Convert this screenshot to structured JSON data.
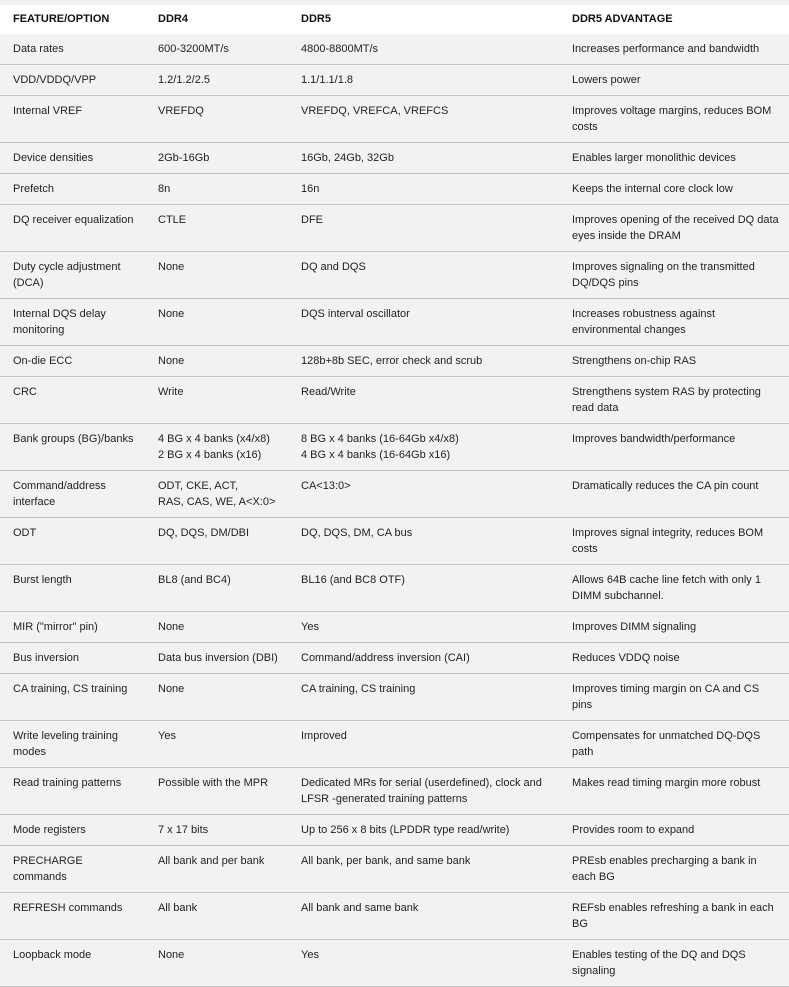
{
  "table": {
    "headers": [
      "FEATURE/OPTION",
      "DDR4",
      "DDR5",
      "DDR5 ADVANTAGE"
    ],
    "rows": [
      [
        "Data rates",
        "600-3200MT/s",
        "4800-8800MT/s",
        "Increases performance and bandwidth"
      ],
      [
        "VDD/VDDQ/VPP",
        " 1.2/1.2/2.5",
        " 1.1/1.1/1.8",
        "Lowers power"
      ],
      [
        "Internal VREF",
        "VREFDQ",
        "VREFDQ, VREFCA, VREFCS",
        "Improves voltage margins, reduces BOM costs"
      ],
      [
        "Device densities",
        " 2Gb-16Gb",
        " 16Gb, 24Gb, 32Gb",
        "Enables larger monolithic devices"
      ],
      [
        "Prefetch",
        " 8n",
        "16n",
        "Keeps the internal core clock low"
      ],
      [
        "DQ receiver equalization",
        "CTLE",
        "DFE",
        "Improves opening of the received DQ data eyes inside the DRAM"
      ],
      [
        "Duty cycle adjustment (DCA)",
        "None",
        "DQ and DQS",
        "Improves signaling on the transmitted DQ/DQS pins"
      ],
      [
        "Internal DQS delay monitoring",
        "None",
        "DQS interval oscillator",
        "Increases robustness against environmental changes"
      ],
      [
        "On-die ECC",
        "None",
        "128b+8b SEC, error check and scrub",
        "Strengthens on-chip RAS"
      ],
      [
        "CRC",
        "Write",
        "Read/Write",
        "Strengthens system RAS by protecting read data"
      ],
      [
        "Bank groups (BG)/banks",
        "4 BG x 4 banks (x4/x8)\n2 BG x 4 banks (x16)",
        "8 BG x 4 banks (16-64Gb x4/x8)\n4 BG x 4 banks (16-64Gb x16)",
        "Improves bandwidth/performance"
      ],
      [
        "Command/address interface",
        "ODT, CKE, ACT,\nRAS, CAS, WE, A<X:0>",
        "CA<13:0>",
        "Dramatically reduces the CA pin count"
      ],
      [
        "ODT",
        "DQ, DQS, DM/DBI",
        "DQ, DQS, DM, CA bus",
        "Improves signal integrity, reduces BOM costs"
      ],
      [
        "Burst length",
        "BL8 (and BC4)",
        "BL16 (and BC8 OTF)",
        "Allows 64B cache line fetch with only 1 DIMM subchannel."
      ],
      [
        "MIR (\"mirror\" pin)",
        "None",
        "Yes",
        "Improves DIMM signaling"
      ],
      [
        "Bus inversion",
        "Data bus inversion (DBI)",
        "Command/address inversion (CAI)",
        "Reduces VDDQ noise"
      ],
      [
        "CA training, CS training",
        "None",
        "CA training, CS training",
        "Improves timing margin on CA and CS pins"
      ],
      [
        "Write leveling training modes",
        "Yes",
        "Improved",
        "Compensates for unmatched DQ-DQS path"
      ],
      [
        "Read training patterns",
        "Possible with the MPR",
        "Dedicated MRs for serial (userdefined), clock and LFSR -generated training patterns",
        "Makes read timing margin more robust"
      ],
      [
        "Mode registers",
        "7 x 17 bits",
        "Up to 256 x 8 bits (LPDDR type read/write)",
        "Provides room to expand"
      ],
      [
        "PRECHARGE commands",
        "All bank and per bank",
        "All bank, per bank, and same bank",
        "PREsb enables precharging a bank in each BG"
      ],
      [
        "REFRESH commands",
        "All bank",
        "All bank and same bank",
        "REFsb enables refreshing a bank in each BG"
      ],
      [
        "Loopback mode",
        "None",
        "Yes",
        "Enables testing of the DQ and DQS signaling"
      ]
    ]
  }
}
